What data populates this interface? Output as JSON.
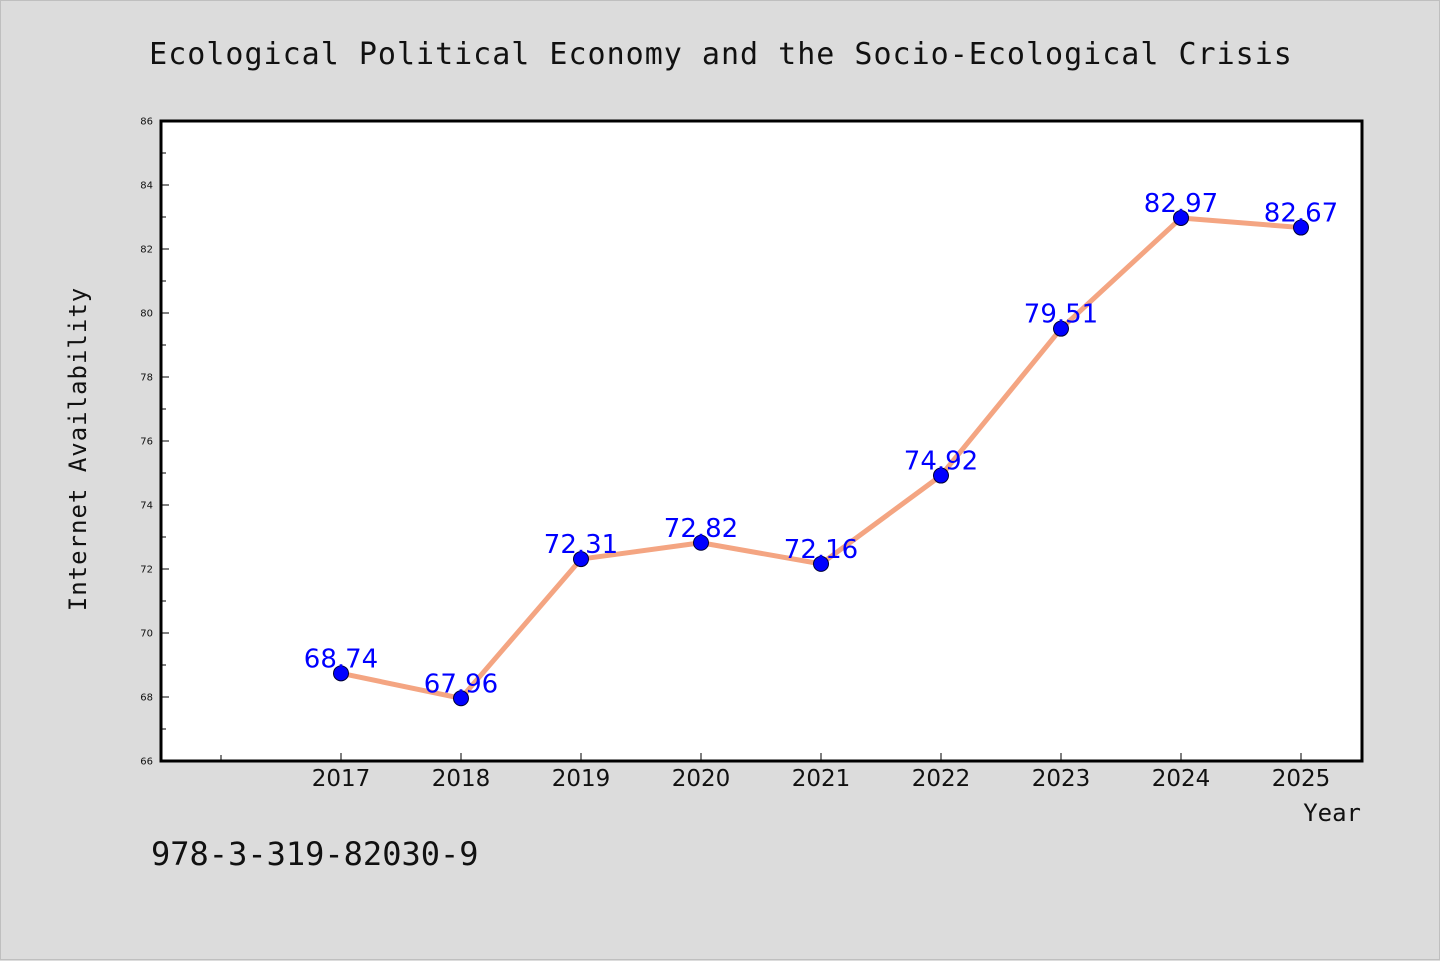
{
  "chart_data": {
    "type": "line",
    "title": "Ecological Political Economy and the Socio-Ecological Crisis",
    "xlabel": "Year",
    "ylabel": "Internet Availability",
    "categories": [
      "2017",
      "2018",
      "2019",
      "2020",
      "2021",
      "2022",
      "2023",
      "2024",
      "2025"
    ],
    "values": [
      68.74,
      67.96,
      72.31,
      72.82,
      72.16,
      74.92,
      79.51,
      82.97,
      82.67
    ],
    "data_labels": [
      "68.74",
      "67.96",
      "72.31",
      "72.82",
      "72.16",
      "74.92",
      "79.51",
      "82.97",
      "82.67"
    ],
    "ylim": [
      66,
      86
    ],
    "yticks": [
      66,
      68,
      70,
      72,
      74,
      76,
      78,
      80,
      82,
      84,
      86
    ],
    "ytick_labels": [
      "66",
      "68",
      "70",
      "72",
      "74",
      "76",
      "78",
      "80",
      "82",
      "84",
      "86"
    ],
    "grid": false,
    "legend": "none",
    "colors": {
      "line": "#f4a582",
      "marker": "#0000ff",
      "label": "#0000ff",
      "background": "#dcdcdc",
      "plot_background": "#ffffff"
    }
  },
  "footnote": "978-3-319-82030-9"
}
